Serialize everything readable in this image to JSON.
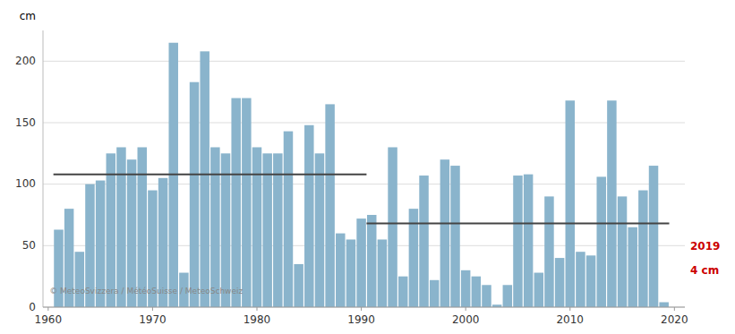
{
  "chart_data": {
    "type": "bar",
    "y_label": "cm",
    "x": [
      1961,
      1962,
      1963,
      1964,
      1965,
      1966,
      1967,
      1968,
      1969,
      1970,
      1971,
      1972,
      1973,
      1974,
      1975,
      1976,
      1977,
      1978,
      1979,
      1980,
      1981,
      1982,
      1983,
      1984,
      1985,
      1986,
      1987,
      1988,
      1989,
      1990,
      1991,
      1992,
      1993,
      1994,
      1995,
      1996,
      1997,
      1998,
      1999,
      2000,
      2001,
      2002,
      2003,
      2004,
      2005,
      2006,
      2007,
      2008,
      2009,
      2010,
      2011,
      2012,
      2013,
      2014,
      2015,
      2016,
      2017,
      2018,
      2019
    ],
    "values": [
      63,
      80,
      45,
      100,
      103,
      125,
      130,
      120,
      130,
      95,
      105,
      215,
      28,
      183,
      208,
      130,
      125,
      170,
      170,
      130,
      125,
      125,
      143,
      35,
      148,
      125,
      165,
      60,
      55,
      72,
      75,
      55,
      130,
      25,
      80,
      107,
      22,
      120,
      115,
      30,
      25,
      18,
      2,
      18,
      107,
      108,
      28,
      90,
      40,
      168,
      45,
      42,
      106,
      168,
      90,
      65,
      95,
      115,
      4
    ],
    "color": "#8ab4cc",
    "reference_lines": [
      {
        "value": 108,
        "start": 1961,
        "end": 1991,
        "color": "#444444"
      },
      {
        "value": 68,
        "start": 1991,
        "end": 2019,
        "color": "#444444"
      }
    ],
    "annotations": [
      {
        "text": "2019",
        "color": "#cc0000"
      },
      {
        "text": "4 cm",
        "color": "#cc0000"
      },
      {
        "text": "© MeteoSvizzera / MétéoSuisse / MeteoSchweiz",
        "color": "#888888"
      }
    ],
    "xlim": [
      1959.5,
      2021
    ],
    "ylim": [
      0,
      225
    ],
    "xticks": [
      1960,
      1970,
      1980,
      1990,
      2000,
      2010,
      2020
    ],
    "yticks": [
      0,
      50,
      100,
      150,
      200
    ],
    "grid": true
  }
}
